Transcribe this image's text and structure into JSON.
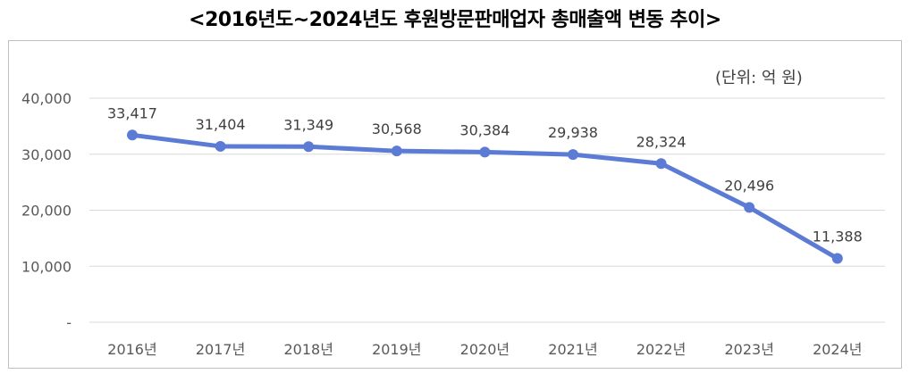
{
  "chart_data": {
    "type": "line",
    "title": "<2016년도~2024년도 후원방문판매업자 총매출액 변동 추이>",
    "unit_note": "(단위: 억 원)",
    "xlabel": "",
    "ylabel": "",
    "categories": [
      "2016년",
      "2017년",
      "2018년",
      "2019년",
      "2020년",
      "2021년",
      "2022년",
      "2023년",
      "2024년"
    ],
    "series": [
      {
        "values": [
          33417,
          31404,
          31349,
          30568,
          30384,
          29938,
          28324,
          20496,
          11388
        ],
        "data_labels": [
          "33,417",
          "31,404",
          "31,349",
          "30,568",
          "30,384",
          "29,938",
          "28,324",
          "20,496",
          "11,388"
        ],
        "color": "#5b7bd5"
      }
    ],
    "ylim": [
      0,
      40000
    ],
    "yticks": [
      0,
      10000,
      20000,
      30000,
      40000
    ],
    "ytick_labels": [
      "-",
      "10,000",
      "20,000",
      "30,000",
      "40,000"
    ],
    "grid": true,
    "legend": "none"
  }
}
